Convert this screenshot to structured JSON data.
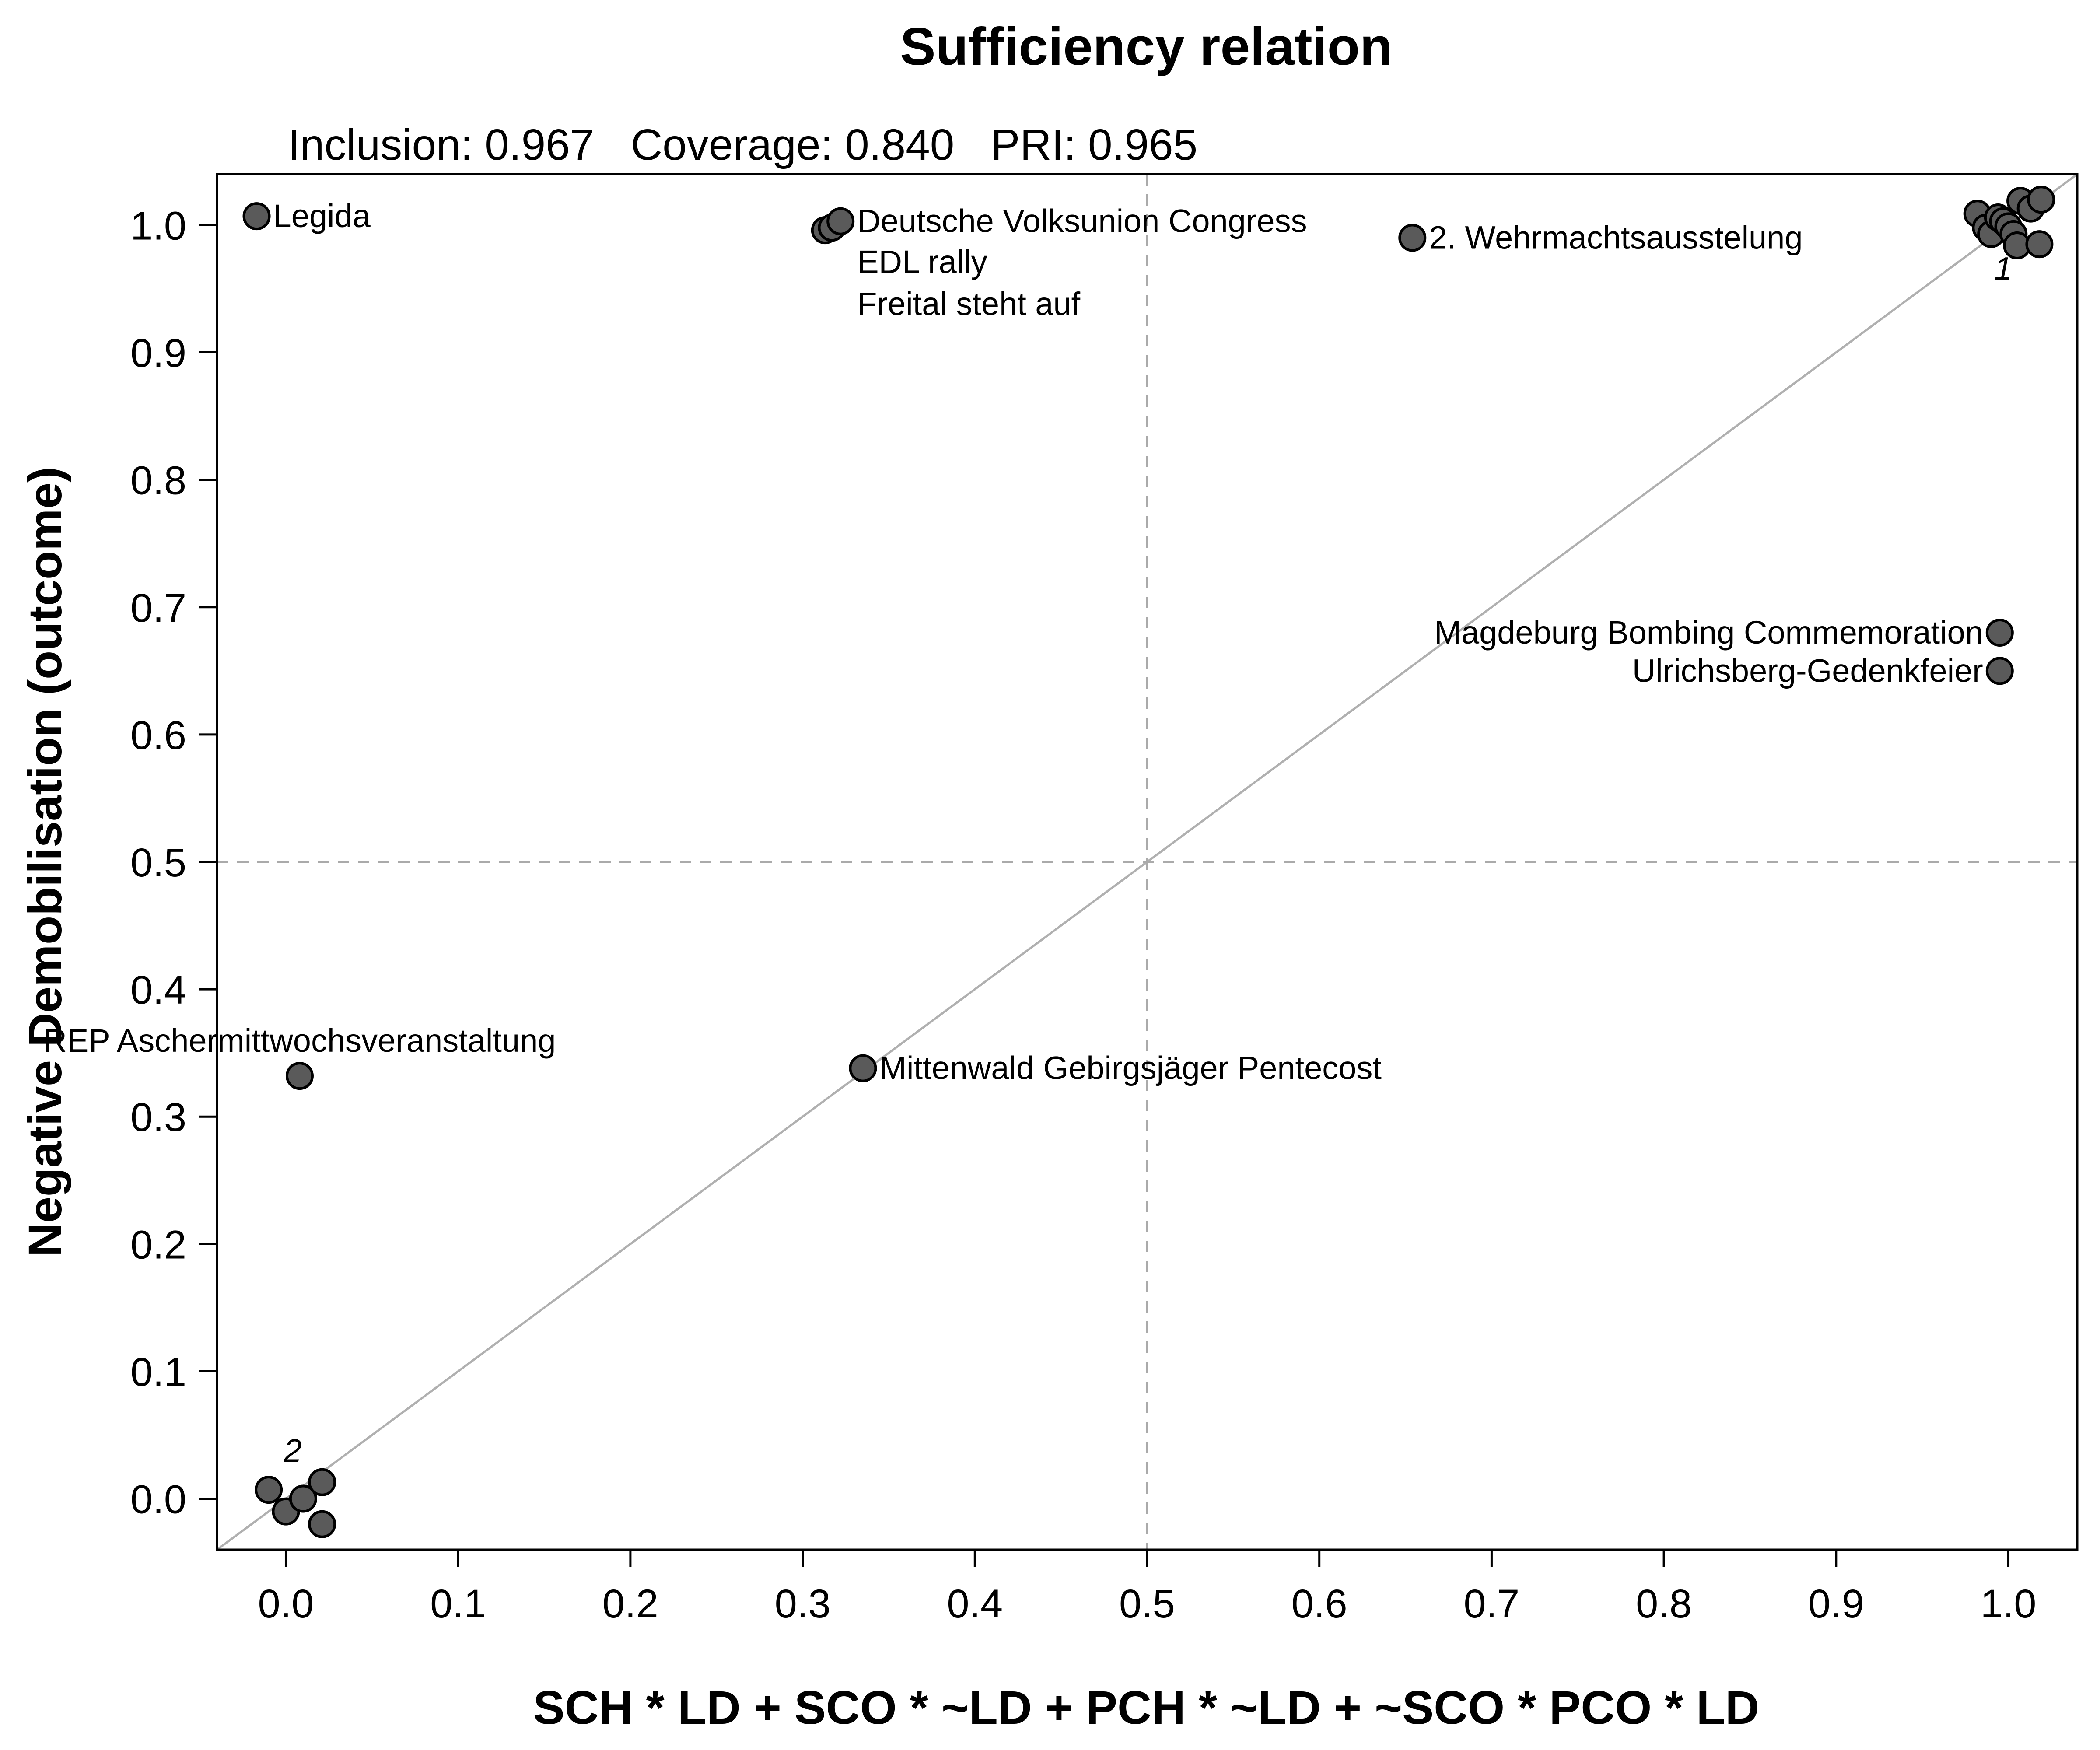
{
  "chart_data": {
    "type": "scatter",
    "title": "Sufficiency relation",
    "stats": {
      "inclusion_label": "Inclusion:",
      "inclusion": "0.967",
      "coverage_label": "Coverage:",
      "coverage": "0.840",
      "pri_label": "PRI:",
      "pri": "0.965"
    },
    "xlabel": "SCH * LD + SCO * ~LD + PCH * ~LD + ~SCO * PCO * LD",
    "ylabel": "Negative Demobilisation (outcome)",
    "xlim": [
      -0.04,
      1.04
    ],
    "ylim": [
      -0.04,
      1.04
    ],
    "x_ticks": [
      "0.0",
      "0.1",
      "0.2",
      "0.3",
      "0.4",
      "0.5",
      "0.6",
      "0.7",
      "0.8",
      "0.9",
      "1.0"
    ],
    "y_ticks": [
      "0.0",
      "0.1",
      "0.2",
      "0.3",
      "0.4",
      "0.5",
      "0.6",
      "0.7",
      "0.8",
      "0.9",
      "1.0"
    ],
    "reference_lines": {
      "diagonal": true,
      "x_threshold": 0.5,
      "y_threshold": 0.5
    },
    "points": [
      {
        "x": -0.017,
        "y": 1.007
      },
      {
        "x": 0.313,
        "y": 0.996
      },
      {
        "x": 0.317,
        "y": 0.998
      },
      {
        "x": 0.322,
        "y": 1.003
      },
      {
        "x": 0.654,
        "y": 0.99
      },
      {
        "x": 0.335,
        "y": 0.338
      },
      {
        "x": 0.008,
        "y": 0.332
      },
      {
        "x": 0.995,
        "y": 0.68
      },
      {
        "x": 0.995,
        "y": 0.65
      },
      {
        "x": 0.982,
        "y": 1.009
      },
      {
        "x": 0.987,
        "y": 0.998
      },
      {
        "x": 0.99,
        "y": 0.993
      },
      {
        "x": 0.994,
        "y": 1.006
      },
      {
        "x": 0.997,
        "y": 1.003
      },
      {
        "x": 1.0,
        "y": 0.999
      },
      {
        "x": 1.003,
        "y": 0.993
      },
      {
        "x": 1.005,
        "y": 0.984
      },
      {
        "x": 1.007,
        "y": 1.019
      },
      {
        "x": 1.013,
        "y": 1.013
      },
      {
        "x": 1.019,
        "y": 1.02
      },
      {
        "x": 1.018,
        "y": 0.985
      },
      {
        "x": -0.01,
        "y": 0.007
      },
      {
        "x": 0.0,
        "y": -0.01
      },
      {
        "x": 0.01,
        "y": 0.0
      },
      {
        "x": 0.021,
        "y": 0.013
      },
      {
        "x": 0.021,
        "y": -0.02
      }
    ],
    "labels": [
      {
        "text": "Legida",
        "x": -0.017,
        "y": 1.007,
        "anchor": "start"
      },
      {
        "text": "Deutsche Volksunion Congress",
        "x": 0.322,
        "y": 1.003,
        "anchor": "start"
      },
      {
        "text": "EDL rally",
        "x": 0.322,
        "y": 0.971,
        "anchor": "start"
      },
      {
        "text": "Freital steht auf",
        "x": 0.322,
        "y": 0.938,
        "anchor": "start"
      },
      {
        "text": "2. Wehrmachtsausstelung",
        "x": 0.654,
        "y": 0.99,
        "anchor": "start"
      },
      {
        "text": "Magdeburg Bombing Commemoration",
        "x": 0.995,
        "y": 0.68,
        "anchor": "end"
      },
      {
        "text": "Ulrichsberg-Gedenkfeier",
        "x": 0.995,
        "y": 0.65,
        "anchor": "end"
      },
      {
        "text": "Mittenwald Gebirgsjäger Pentecost",
        "x": 0.335,
        "y": 0.338,
        "anchor": "start"
      },
      {
        "text": "REP Aschermittwochsveranstaltung",
        "x": 0.008,
        "y": 0.332,
        "anchor": "above"
      }
    ],
    "cluster_labels": [
      {
        "text": "1",
        "x": 0.997,
        "y": 0.957
      },
      {
        "text": "2",
        "x": 0.004,
        "y": 0.029
      }
    ]
  }
}
